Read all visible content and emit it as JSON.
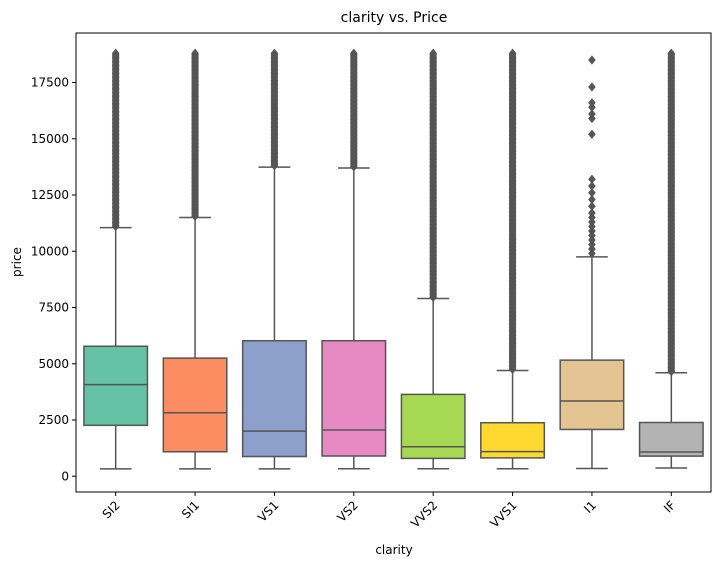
{
  "chart_data": {
    "type": "box",
    "title": "clarity vs. Price",
    "xlabel": "clarity",
    "ylabel": "price",
    "ylim": [
      -700,
      19700
    ],
    "yticks": [
      0,
      2500,
      5000,
      7500,
      10000,
      12500,
      15000,
      17500
    ],
    "grid": false,
    "legend": "none",
    "categories": [
      "SI2",
      "SI1",
      "VS1",
      "VS2",
      "VVS2",
      "VVS1",
      "I1",
      "IF"
    ],
    "colors": [
      "#66c2a5",
      "#fc8d62",
      "#8da0cb",
      "#e78ac3",
      "#a6d854",
      "#ffd92f",
      "#e5c494",
      "#b3b3b3"
    ],
    "boxes": [
      {
        "category": "SI2",
        "min": 326,
        "q1": 2264,
        "median": 4072,
        "q3": 5777,
        "max": 11050,
        "outliers_from": 11100,
        "outliers_to": 18800
      },
      {
        "category": "SI1",
        "min": 326,
        "q1": 1089,
        "median": 2822,
        "q3": 5250,
        "max": 11500,
        "outliers_from": 11550,
        "outliers_to": 18800
      },
      {
        "category": "VS1",
        "min": 327,
        "q1": 876,
        "median": 2005,
        "q3": 6023,
        "max": 13740,
        "outliers_from": 13800,
        "outliers_to": 18800
      },
      {
        "category": "VS2",
        "min": 334,
        "q1": 900,
        "median": 2054,
        "q3": 6024,
        "max": 13700,
        "outliers_from": 13750,
        "outliers_to": 18800
      },
      {
        "category": "VVS2",
        "min": 336,
        "q1": 794,
        "median": 1311,
        "q3": 3638,
        "max": 7900,
        "outliers_from": 7950,
        "outliers_to": 18800
      },
      {
        "category": "VVS1",
        "min": 336,
        "q1": 816,
        "median": 1093,
        "q3": 2379,
        "max": 4700,
        "outliers_from": 4750,
        "outliers_to": 18800
      },
      {
        "category": "I1",
        "min": 345,
        "q1": 2080,
        "median": 3344,
        "q3": 5161,
        "max": 9750,
        "outliers": [
          9900,
          10100,
          10300,
          10500,
          10700,
          10900,
          11100,
          11300,
          11500,
          11700,
          12000,
          12300,
          12600,
          12900,
          13200,
          15200,
          15900,
          16100,
          16400,
          16600,
          17300,
          18500
        ]
      },
      {
        "category": "IF",
        "min": 369,
        "q1": 895,
        "median": 1080,
        "q3": 2389,
        "max": 4600,
        "outliers_from": 4650,
        "outliers_to": 18800
      }
    ]
  }
}
